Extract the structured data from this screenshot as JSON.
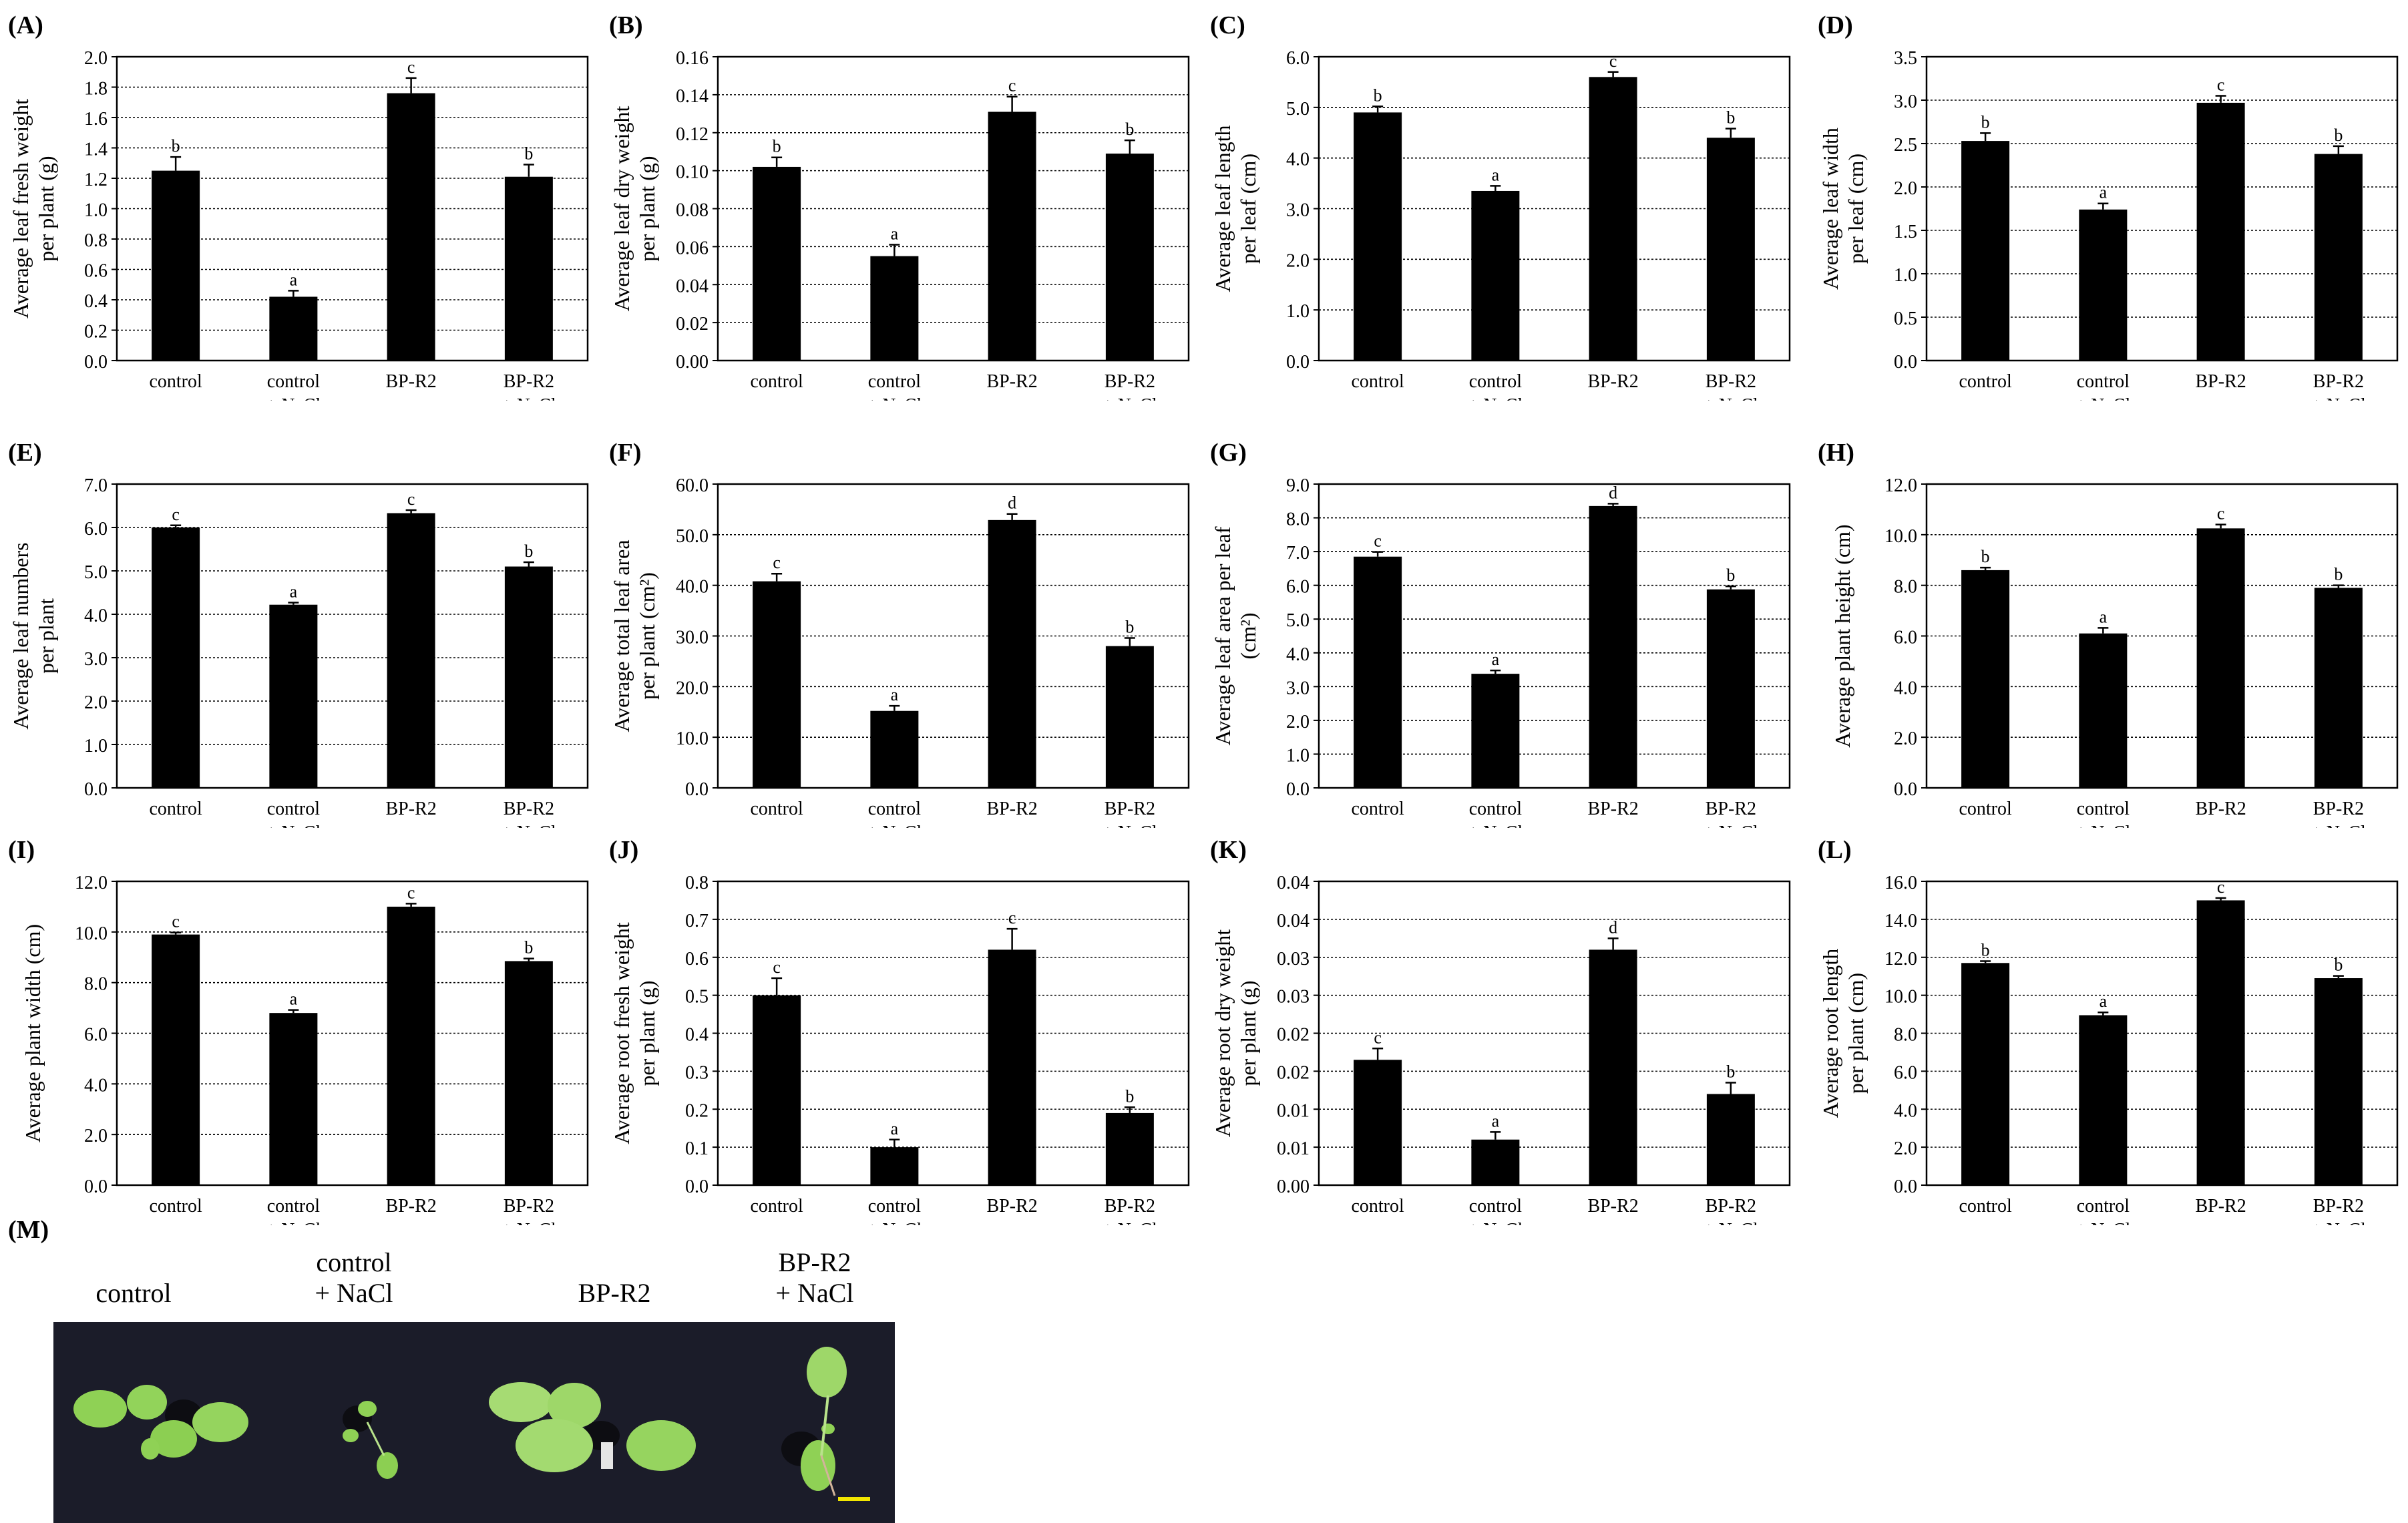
{
  "figure": {
    "categories": [
      [
        "control"
      ],
      [
        "control",
        "+ NaCl"
      ],
      [
        "BP-R2"
      ],
      [
        "BP-R2",
        "+ NaCl"
      ]
    ],
    "photo": {
      "label": "(M)",
      "captions": [
        "control",
        "control\n+ NaCl",
        "BP-R2",
        "BP-R2\n+ NaCl"
      ],
      "background": "#1b1c29",
      "leaf_color": "#8fd155",
      "scale_bar_color": "#f2e600"
    }
  },
  "chart_data": [
    {
      "id": "A",
      "label": "(A)",
      "type": "bar",
      "ylabel": [
        "Average leaf fresh weight",
        "per plant (g)"
      ],
      "ylim": [
        0,
        2.0
      ],
      "ticks": [
        "0.0",
        "0.2",
        "0.4",
        "0.6",
        "0.8",
        "1.0",
        "1.2",
        "1.4",
        "1.6",
        "1.8",
        "2.0"
      ],
      "values": [
        1.25,
        0.42,
        1.76,
        1.21
      ],
      "errors": [
        0.09,
        0.04,
        0.1,
        0.08
      ],
      "letters": [
        "b",
        "a",
        "c",
        "b"
      ]
    },
    {
      "id": "B",
      "label": "(B)",
      "type": "bar",
      "ylabel": [
        "Average leaf dry weight",
        "per plant (g)"
      ],
      "ylim": [
        0,
        0.16
      ],
      "ticks": [
        "0.00",
        "0.02",
        "0.04",
        "0.06",
        "0.08",
        "0.10",
        "0.12",
        "0.14",
        "0.16"
      ],
      "values": [
        0.102,
        0.055,
        0.131,
        0.109
      ],
      "errors": [
        0.005,
        0.006,
        0.008,
        0.007
      ],
      "letters": [
        "b",
        "a",
        "c",
        "b"
      ]
    },
    {
      "id": "C",
      "label": "(C)",
      "type": "bar",
      "ylabel": [
        "Average leaf length",
        "per leaf (cm)"
      ],
      "ylim": [
        0,
        6.0
      ],
      "ticks": [
        "0.0",
        "1.0",
        "2.0",
        "3.0",
        "4.0",
        "5.0",
        "6.0"
      ],
      "values": [
        4.9,
        3.35,
        5.6,
        4.4
      ],
      "errors": [
        0.12,
        0.1,
        0.1,
        0.18
      ],
      "letters": [
        "b",
        "a",
        "c",
        "b"
      ]
    },
    {
      "id": "D",
      "label": "(D)",
      "type": "bar",
      "ylabel": [
        "Average  leaf width",
        "per leaf (cm)"
      ],
      "ylim": [
        0,
        3.5
      ],
      "ticks": [
        "0.0",
        "0.5",
        "1.0",
        "1.5",
        "2.0",
        "2.5",
        "3.0",
        "3.5"
      ],
      "values": [
        2.53,
        1.74,
        2.97,
        2.38
      ],
      "errors": [
        0.09,
        0.07,
        0.08,
        0.09
      ],
      "letters": [
        "b",
        "a",
        "c",
        "b"
      ]
    },
    {
      "id": "E",
      "label": "(E)",
      "type": "bar",
      "ylabel": [
        "Average leaf numbers",
        "per plant"
      ],
      "ylim": [
        0,
        7.0
      ],
      "ticks": [
        "0.0",
        "1.0",
        "2.0",
        "3.0",
        "4.0",
        "5.0",
        "6.0",
        "7.0"
      ],
      "values": [
        6.0,
        4.22,
        6.33,
        5.1
      ],
      "errors": [
        0.05,
        0.05,
        0.07,
        0.1
      ],
      "letters": [
        "c",
        "a",
        "c",
        "b"
      ]
    },
    {
      "id": "F",
      "label": "(F)",
      "type": "bar",
      "ylabel": [
        "Average total leaf area",
        "per plant (cm²)"
      ],
      "ylim": [
        0,
        60.0
      ],
      "ticks": [
        "0.0",
        "10.0",
        "20.0",
        "30.0",
        "40.0",
        "50.0",
        "60.0"
      ],
      "values": [
        40.8,
        15.2,
        52.9,
        28.0
      ],
      "errors": [
        1.5,
        1.0,
        1.2,
        1.6
      ],
      "letters": [
        "c",
        "a",
        "d",
        "b"
      ]
    },
    {
      "id": "G",
      "label": "(G)",
      "type": "bar",
      "ylabel": [
        "Average leaf area per leaf",
        "(cm²)"
      ],
      "ylim": [
        0,
        9.0
      ],
      "ticks": [
        "0.0",
        "1.0",
        "2.0",
        "3.0",
        "4.0",
        "5.0",
        "6.0",
        "7.0",
        "8.0",
        "9.0"
      ],
      "values": [
        6.85,
        3.38,
        8.35,
        5.88
      ],
      "errors": [
        0.14,
        0.1,
        0.07,
        0.09
      ],
      "letters": [
        "c",
        "a",
        "d",
        "b"
      ]
    },
    {
      "id": "H",
      "label": "(H)",
      "type": "bar",
      "ylabel": [
        "Average plant height (cm)"
      ],
      "ylim": [
        0,
        12.0
      ],
      "ticks": [
        "0.0",
        "2.0",
        "4.0",
        "6.0",
        "8.0",
        "10.0",
        "12.0"
      ],
      "values": [
        8.6,
        6.1,
        10.25,
        7.9
      ],
      "errors": [
        0.1,
        0.22,
        0.15,
        0.1
      ],
      "letters": [
        "b",
        "a",
        "c",
        "b"
      ]
    },
    {
      "id": "I",
      "label": "(I)",
      "type": "bar",
      "ylabel": [
        "Average plant width (cm)"
      ],
      "ylim": [
        0,
        12.0
      ],
      "ticks": [
        "0.0",
        "2.0",
        "4.0",
        "6.0",
        "8.0",
        "10.0",
        "12.0"
      ],
      "values": [
        9.9,
        6.8,
        11.0,
        8.85
      ],
      "errors": [
        0.08,
        0.12,
        0.12,
        0.1
      ],
      "letters": [
        "c",
        "a",
        "c",
        "b"
      ]
    },
    {
      "id": "J",
      "label": "(J)",
      "type": "bar",
      "ylabel": [
        "Average root fresh weight",
        "per plant (g)"
      ],
      "ylim": [
        0,
        0.8
      ],
      "ticks": [
        "0.0",
        "0.1",
        "0.2",
        "0.3",
        "0.4",
        "0.5",
        "0.6",
        "0.7",
        "0.8"
      ],
      "values": [
        0.5,
        0.1,
        0.62,
        0.19
      ],
      "errors": [
        0.045,
        0.02,
        0.055,
        0.015
      ],
      "letters": [
        "c",
        "a",
        "c",
        "b"
      ]
    },
    {
      "id": "K",
      "label": "(K)",
      "type": "bar",
      "ylabel": [
        "Average root dry weight",
        "per plant (g)"
      ],
      "ylim": [
        0,
        0.04
      ],
      "ticks": [
        "0.00",
        "0.01",
        "0.01",
        "0.02",
        "0.02",
        "0.03",
        "0.03",
        "0.04",
        "0.04"
      ],
      "values": [
        0.0165,
        0.006,
        0.031,
        0.012
      ],
      "errors": [
        0.0015,
        0.001,
        0.0015,
        0.0015
      ],
      "letters": [
        "c",
        "a",
        "d",
        "b"
      ]
    },
    {
      "id": "L",
      "label": "(L)",
      "type": "bar",
      "ylabel": [
        "Average root length",
        "per plant (cm)"
      ],
      "ylim": [
        0,
        16.0
      ],
      "ticks": [
        "0.0",
        "2.0",
        "4.0",
        "6.0",
        "8.0",
        "10.0",
        "12.0",
        "14.0",
        "16.0"
      ],
      "values": [
        11.7,
        8.95,
        15.0,
        10.9
      ],
      "errors": [
        0.1,
        0.15,
        0.12,
        0.12
      ],
      "letters": [
        "b",
        "a",
        "c",
        "b"
      ]
    }
  ]
}
